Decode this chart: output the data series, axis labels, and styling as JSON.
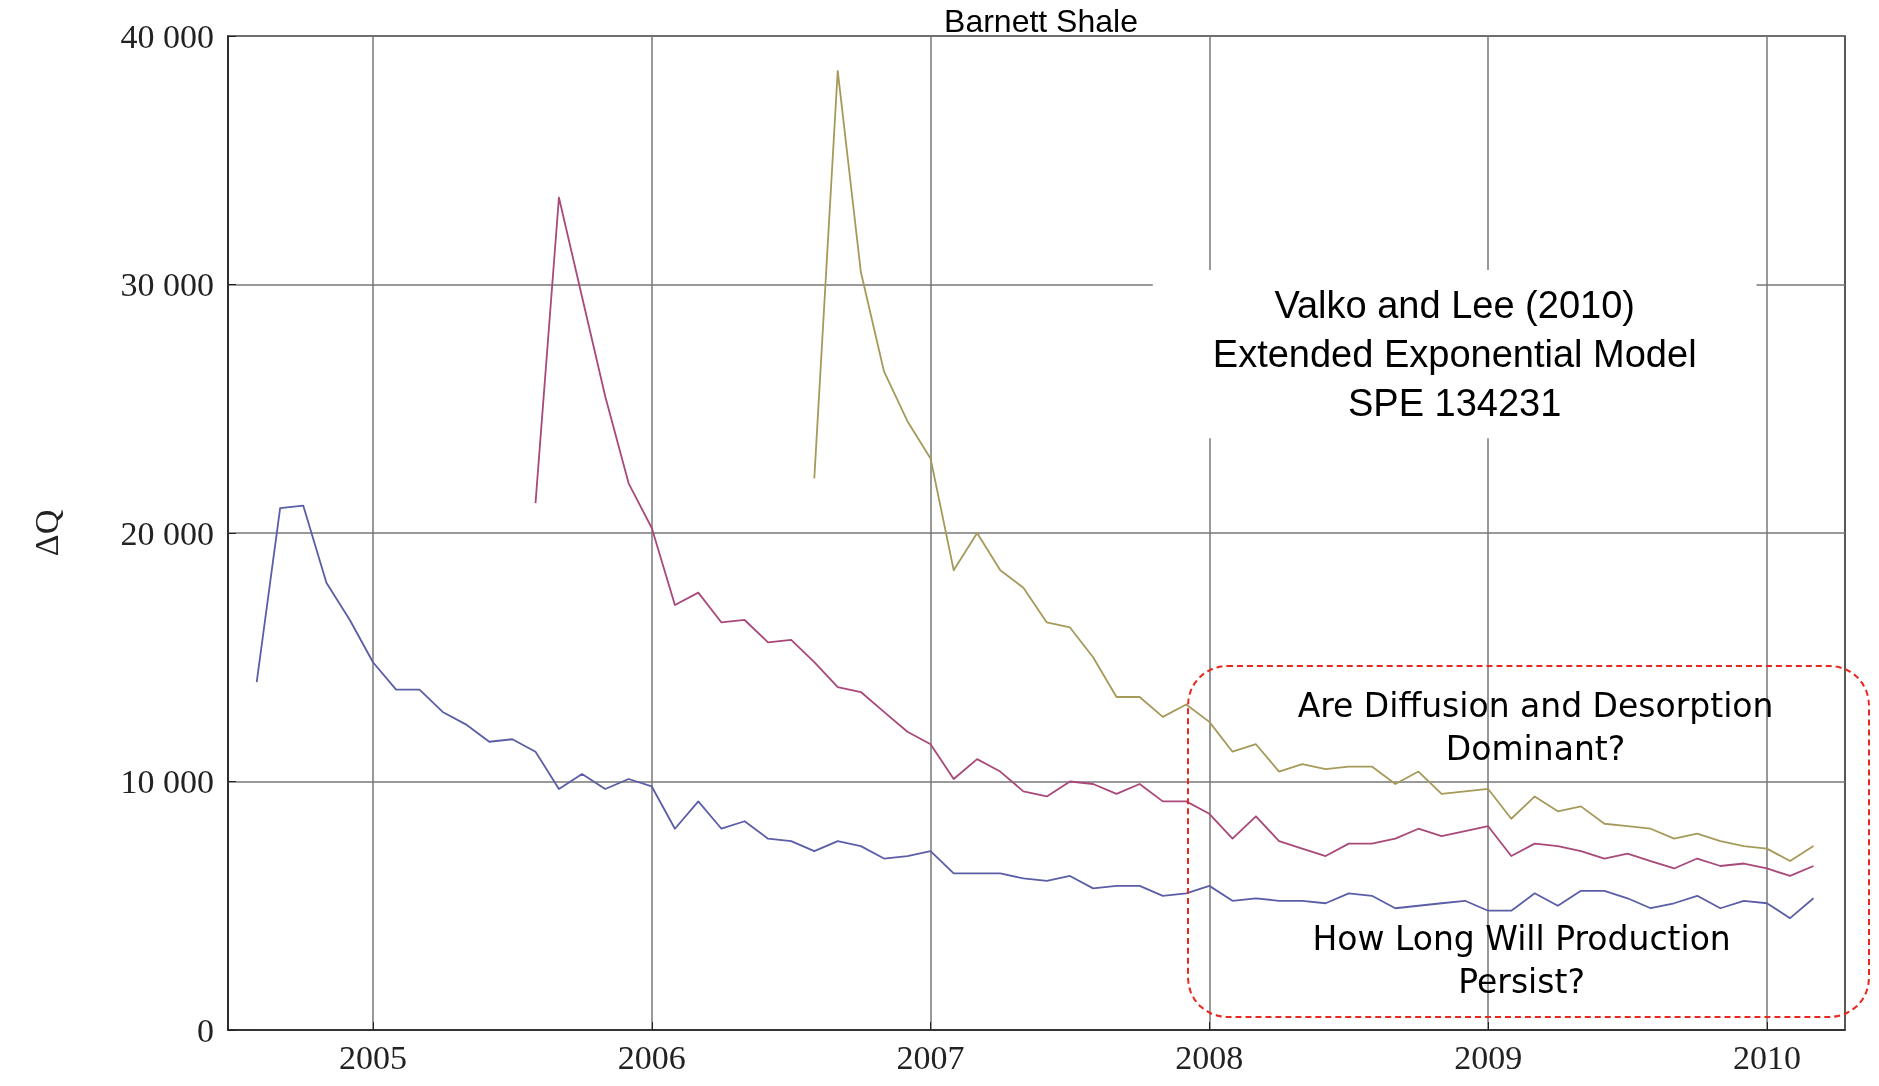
{
  "chart_data": {
    "type": "line",
    "title": "Barnett Shale",
    "ylabel": "ΔQ",
    "xlim": [
      2004.48,
      2010.28
    ],
    "xticks": [
      2005,
      2006,
      2007,
      2008,
      2009,
      2010
    ],
    "ylim": [
      0,
      40000
    ],
    "yticks": [
      {
        "value": 0,
        "label": "0"
      },
      {
        "value": 10000,
        "label": "10 000"
      },
      {
        "value": 20000,
        "label": "20 000"
      },
      {
        "value": 30000,
        "label": "30 000"
      },
      {
        "value": 40000,
        "label": "40 000"
      }
    ],
    "grid": true,
    "marker": "none",
    "line_style": "solid",
    "annotations": [
      "Valko and Lee (2010)\nExtended Exponential Model\nSPE 134231",
      "Are Diffusion and Desorption\nDominant?",
      "How Long Will Production\nPersist?"
    ],
    "series": [
      {
        "color": "#5b5ea6",
        "x": [
          2004.583,
          2004.667,
          2004.75,
          2004.833,
          2004.917,
          2005.0,
          2005.083,
          2005.167,
          2005.25,
          2005.333,
          2005.417,
          2005.5,
          2005.583,
          2005.667,
          2005.75,
          2005.833,
          2005.917,
          2006.0,
          2006.083,
          2006.167,
          2006.25,
          2006.333,
          2006.417,
          2006.5,
          2006.583,
          2006.667,
          2006.75,
          2006.833,
          2006.917,
          2007.0,
          2007.083,
          2007.167,
          2007.25,
          2007.333,
          2007.417,
          2007.5,
          2007.583,
          2007.667,
          2007.75,
          2007.833,
          2007.917,
          2008.0,
          2008.083,
          2008.167,
          2008.25,
          2008.333,
          2008.417,
          2008.5,
          2008.583,
          2008.667,
          2008.75,
          2008.833,
          2008.917,
          2009.0,
          2009.083,
          2009.167,
          2009.25,
          2009.333,
          2009.417,
          2009.5,
          2009.583,
          2009.667,
          2009.75,
          2009.833,
          2009.917,
          2010.0,
          2010.083,
          2010.167
        ],
        "values": [
          14000,
          21000,
          21100,
          18000,
          16500,
          14800,
          13700,
          13700,
          12800,
          12300,
          11600,
          11700,
          11200,
          9700,
          10300,
          9700,
          10100,
          9800,
          8100,
          9200,
          8100,
          8400,
          7700,
          7600,
          7200,
          7600,
          7400,
          6900,
          7000,
          7200,
          6300,
          6300,
          6300,
          6100,
          6000,
          6200,
          5700,
          5800,
          5800,
          5400,
          5500,
          5800,
          5200,
          5300,
          5200,
          5200,
          5100,
          5500,
          5400,
          4900,
          5000,
          5100,
          5200,
          4800,
          4800,
          5500,
          5000,
          5600,
          5600,
          5300,
          4900,
          5100,
          5400,
          4900,
          5200,
          5100,
          4500,
          5300
        ]
      },
      {
        "color": "#a8497a",
        "x": [
          2005.583,
          2005.667,
          2005.75,
          2005.833,
          2005.917,
          2006.0,
          2006.083,
          2006.167,
          2006.25,
          2006.333,
          2006.417,
          2006.5,
          2006.583,
          2006.667,
          2006.75,
          2006.833,
          2006.917,
          2007.0,
          2007.083,
          2007.167,
          2007.25,
          2007.333,
          2007.417,
          2007.5,
          2007.583,
          2007.667,
          2007.75,
          2007.833,
          2007.917,
          2008.0,
          2008.083,
          2008.167,
          2008.25,
          2008.333,
          2008.417,
          2008.5,
          2008.583,
          2008.667,
          2008.75,
          2008.833,
          2008.917,
          2009.0,
          2009.083,
          2009.167,
          2009.25,
          2009.333,
          2009.417,
          2009.5,
          2009.583,
          2009.667,
          2009.75,
          2009.833,
          2009.917,
          2010.0,
          2010.083,
          2010.167
        ],
        "values": [
          21200,
          33500,
          29500,
          25500,
          22000,
          20200,
          17100,
          17600,
          16400,
          16500,
          15600,
          15700,
          14800,
          13800,
          13600,
          12800,
          12000,
          11500,
          10100,
          10900,
          10400,
          9600,
          9400,
          10000,
          9900,
          9500,
          9900,
          9200,
          9200,
          8700,
          7700,
          8600,
          7600,
          7300,
          7000,
          7500,
          7500,
          7700,
          8100,
          7800,
          8000,
          8200,
          7000,
          7500,
          7400,
          7200,
          6900,
          7100,
          6800,
          6500,
          6900,
          6600,
          6700,
          6500,
          6200,
          6600
        ]
      },
      {
        "color": "#a69a5a",
        "x": [
          2006.583,
          2006.667,
          2006.75,
          2006.833,
          2006.917,
          2007.0,
          2007.083,
          2007.167,
          2007.25,
          2007.333,
          2007.417,
          2007.5,
          2007.583,
          2007.667,
          2007.75,
          2007.833,
          2007.917,
          2008.0,
          2008.083,
          2008.167,
          2008.25,
          2008.333,
          2008.417,
          2008.5,
          2008.583,
          2008.667,
          2008.75,
          2008.833,
          2008.917,
          2009.0,
          2009.083,
          2009.167,
          2009.25,
          2009.333,
          2009.417,
          2009.5,
          2009.583,
          2009.667,
          2009.75,
          2009.833,
          2009.917,
          2010.0,
          2010.083,
          2010.167
        ],
        "values": [
          22200,
          38600,
          30500,
          26500,
          24500,
          23000,
          18500,
          20000,
          18500,
          17800,
          16400,
          16200,
          15000,
          13400,
          13400,
          12600,
          13100,
          12400,
          11200,
          11500,
          10400,
          10700,
          10500,
          10600,
          10600,
          9900,
          10400,
          9500,
          9600,
          9700,
          8500,
          9400,
          8800,
          9000,
          8300,
          8200,
          8100,
          7700,
          7900,
          7600,
          7400,
          7300,
          6800,
          7400
        ]
      }
    ]
  }
}
